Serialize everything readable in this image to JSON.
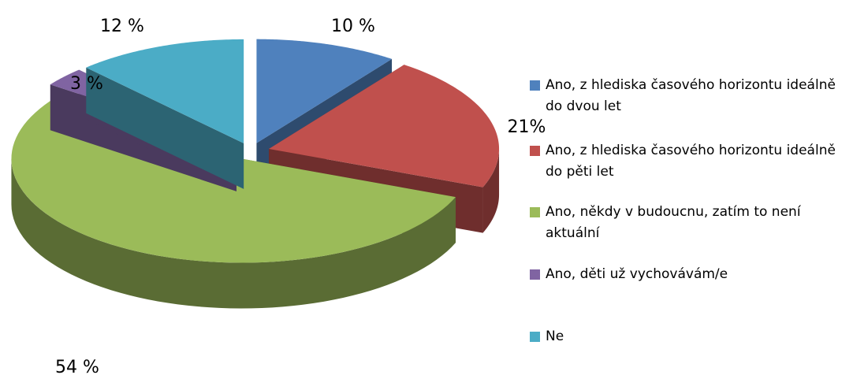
{
  "chart_data": {
    "type": "pie",
    "categories": [
      "Ano, z hlediska časového horizontu ideálně do dvou let",
      "Ano, z hlediska časového horizontu ideálně do pěti let",
      "Ano, někdy v budoucnu, zatím to není aktuální",
      "Ano, děti už vychovávám/e",
      "Ne"
    ],
    "values": [
      10,
      21,
      54,
      3,
      12
    ],
    "value_labels": [
      "10 %",
      "21%",
      "54 %",
      "3 %",
      "12 %"
    ],
    "colors": [
      "#4f81bd",
      "#c0504d",
      "#9bbb59",
      "#8064a2",
      "#4bacc6"
    ],
    "legend": "right"
  }
}
